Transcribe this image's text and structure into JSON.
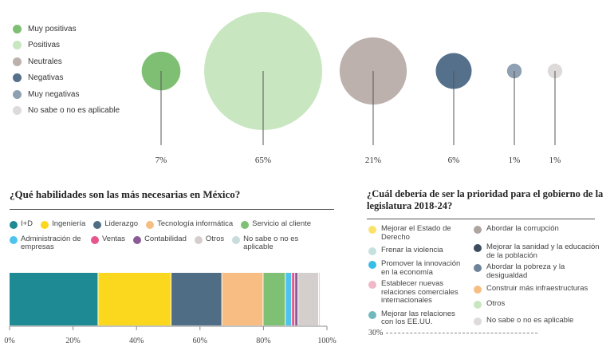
{
  "chart_data": [
    {
      "type": "bubble",
      "legend": [
        {
          "label": "Muy positivas",
          "color": "#7fbf73"
        },
        {
          "label": "Positivas",
          "color": "#c8e6c0"
        },
        {
          "label": "Neutrales",
          "color": "#bcb1ad"
        },
        {
          "label": "Negativas",
          "color": "#54708a"
        },
        {
          "label": "Muy negativas",
          "color": "#8ea0b2"
        },
        {
          "label": "No sabe o no es aplicable",
          "color": "#dedad9"
        }
      ],
      "categories": [
        "Muy positivas",
        "Positivas",
        "Neutrales",
        "Negativas",
        "Muy negativas",
        "No sabe o no es aplicable"
      ],
      "values": [
        7,
        65,
        21,
        6,
        1,
        1
      ],
      "value_labels": [
        "7%",
        "65%",
        "21%",
        "6%",
        "1%",
        "1%"
      ]
    },
    {
      "type": "bar",
      "stacked": true,
      "orientation": "horizontal",
      "title": "¿Qué habilidades son las más necesarias en México?",
      "legend": [
        {
          "label": "I+D",
          "color": "#1e8a93"
        },
        {
          "label": "Ingeniería",
          "color": "#fbd71e"
        },
        {
          "label": "Liderazgo",
          "color": "#4f6e86"
        },
        {
          "label": "Tecnología informática",
          "color": "#f7bd83"
        },
        {
          "label": "Servicio al cliente",
          "color": "#7ec174"
        },
        {
          "label": "Administración de empresas",
          "color": "#4fc3ef"
        },
        {
          "label": "Ventas",
          "color": "#e6558c"
        },
        {
          "label": "Contabilidad",
          "color": "#8a5c97"
        },
        {
          "label": "Otros",
          "color": "#d4cfcd"
        },
        {
          "label": "No sabe o no es aplicable",
          "color": "#c9dcdc"
        }
      ],
      "values": [
        28,
        23,
        16,
        13,
        7,
        2,
        1,
        1,
        6.5,
        0.5
      ],
      "xlim": [
        0,
        100
      ],
      "ticks": [
        "0%",
        "20%",
        "40%",
        "60%",
        "80%",
        "100%"
      ]
    },
    {
      "type": "legend",
      "title": "¿Cuál debería de ser la prioridad para el gobierno de la legislatura 2018-24?",
      "legend_left": [
        {
          "label": "Mejorar el Estado de Derecho",
          "color": "#fbe36b"
        },
        {
          "label": "Frenar la violencia",
          "color": "#c6e0df"
        },
        {
          "label": "Promover la innovación en la economía",
          "color": "#38bce8"
        },
        {
          "label": "Establecer nuevas relaciones comerciales internacionales",
          "color": "#f1b6c8"
        },
        {
          "label": "Mejorar las relaciones con los EE.UU.",
          "color": "#6fb9bd"
        }
      ],
      "legend_right": [
        {
          "label": "Abordar la corrupción",
          "color": "#aea4a0"
        },
        {
          "label": "Mejorar la sanidad y la educación de la población",
          "color": "#3e4c60"
        },
        {
          "label": "Abordar la pobreza y la desigualdad",
          "color": "#6d849b"
        },
        {
          "label": "Construir más infraestructuras",
          "color": "#f7bd83"
        },
        {
          "label": "Otros",
          "color": "#c8e6c0"
        },
        {
          "label": "No sabe o no es aplicable",
          "color": "#dedad9"
        }
      ],
      "axis_label": "30%"
    }
  ]
}
